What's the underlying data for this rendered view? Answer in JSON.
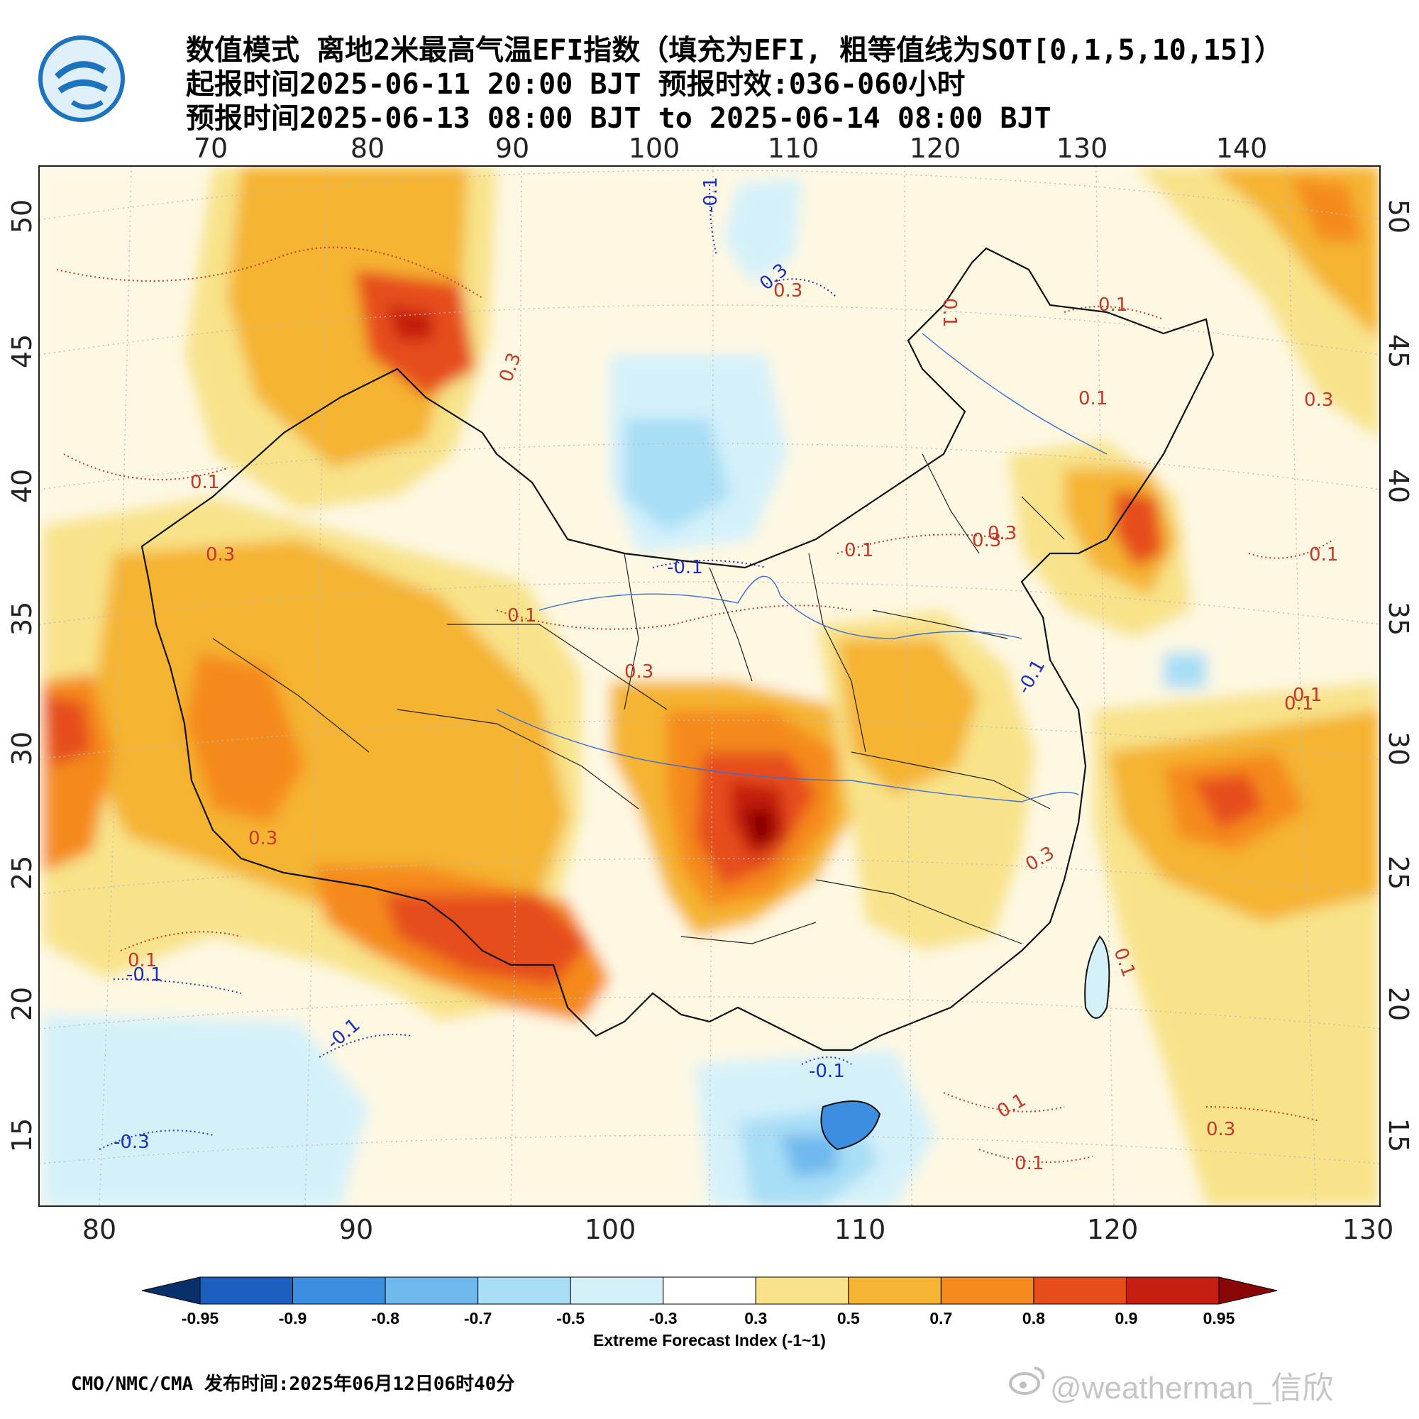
{
  "title": {
    "line1": "数值模式 离地2米最高气温EFI指数（填充为EFI, 粗等值线为SOT[0,1,5,10,15]）",
    "line2": "起报时间2025-06-11 20:00 BJT 预报时效:036-060小时",
    "line3": "预报时间2025-06-13 08:00 BJT to 2025-06-14 08:00 BJT"
  },
  "logo_icon": "cma-logo-icon",
  "map": {
    "top_lon_labels": [
      "70",
      "80",
      "90",
      "100",
      "110",
      "120",
      "130",
      "140"
    ],
    "bottom_lon_labels": [
      "80",
      "90",
      "100",
      "110",
      "120",
      "130"
    ],
    "lat_labels": [
      "50",
      "45",
      "40",
      "35",
      "30",
      "25",
      "20",
      "15"
    ],
    "contour_labels": [
      "-0.1",
      "0.3",
      "0.1",
      "0.3",
      "0.1",
      "0.1",
      "0.3",
      "0.1",
      "0.3",
      "0.1",
      "0.3",
      "0.1",
      "-0.1",
      "0.1",
      "0.3",
      "-0.1",
      "0.3",
      "0.1",
      "-0.1",
      "0.1",
      "0.3",
      "0.1",
      "-0.3",
      "-0.1",
      "-0.1",
      "0.1",
      "0.1",
      "0.3",
      "0.3",
      "0.1",
      "0.3"
    ]
  },
  "colorbar": {
    "colors": [
      "#08306b",
      "#1c5fbf",
      "#3c8fe0",
      "#6fb8ee",
      "#a8def6",
      "#d4f1fa",
      "#ffffff",
      "#f8e38a",
      "#f5b433",
      "#f58a1f",
      "#e64d1a",
      "#c41f10",
      "#8a0505"
    ],
    "labels": [
      "-0.95",
      "-0.9",
      "-0.8",
      "-0.7",
      "-0.5",
      "-0.3",
      "0.3",
      "0.5",
      "0.7",
      "0.8",
      "0.9",
      "0.95"
    ],
    "title": "Extreme Forecast Index (-1~1)"
  },
  "footer": "CMO/NMC/CMA 发布时间:2025年06月12日06时40分",
  "watermark": "@weatherman_信欣",
  "watermark_icon": "weibo-icon"
}
